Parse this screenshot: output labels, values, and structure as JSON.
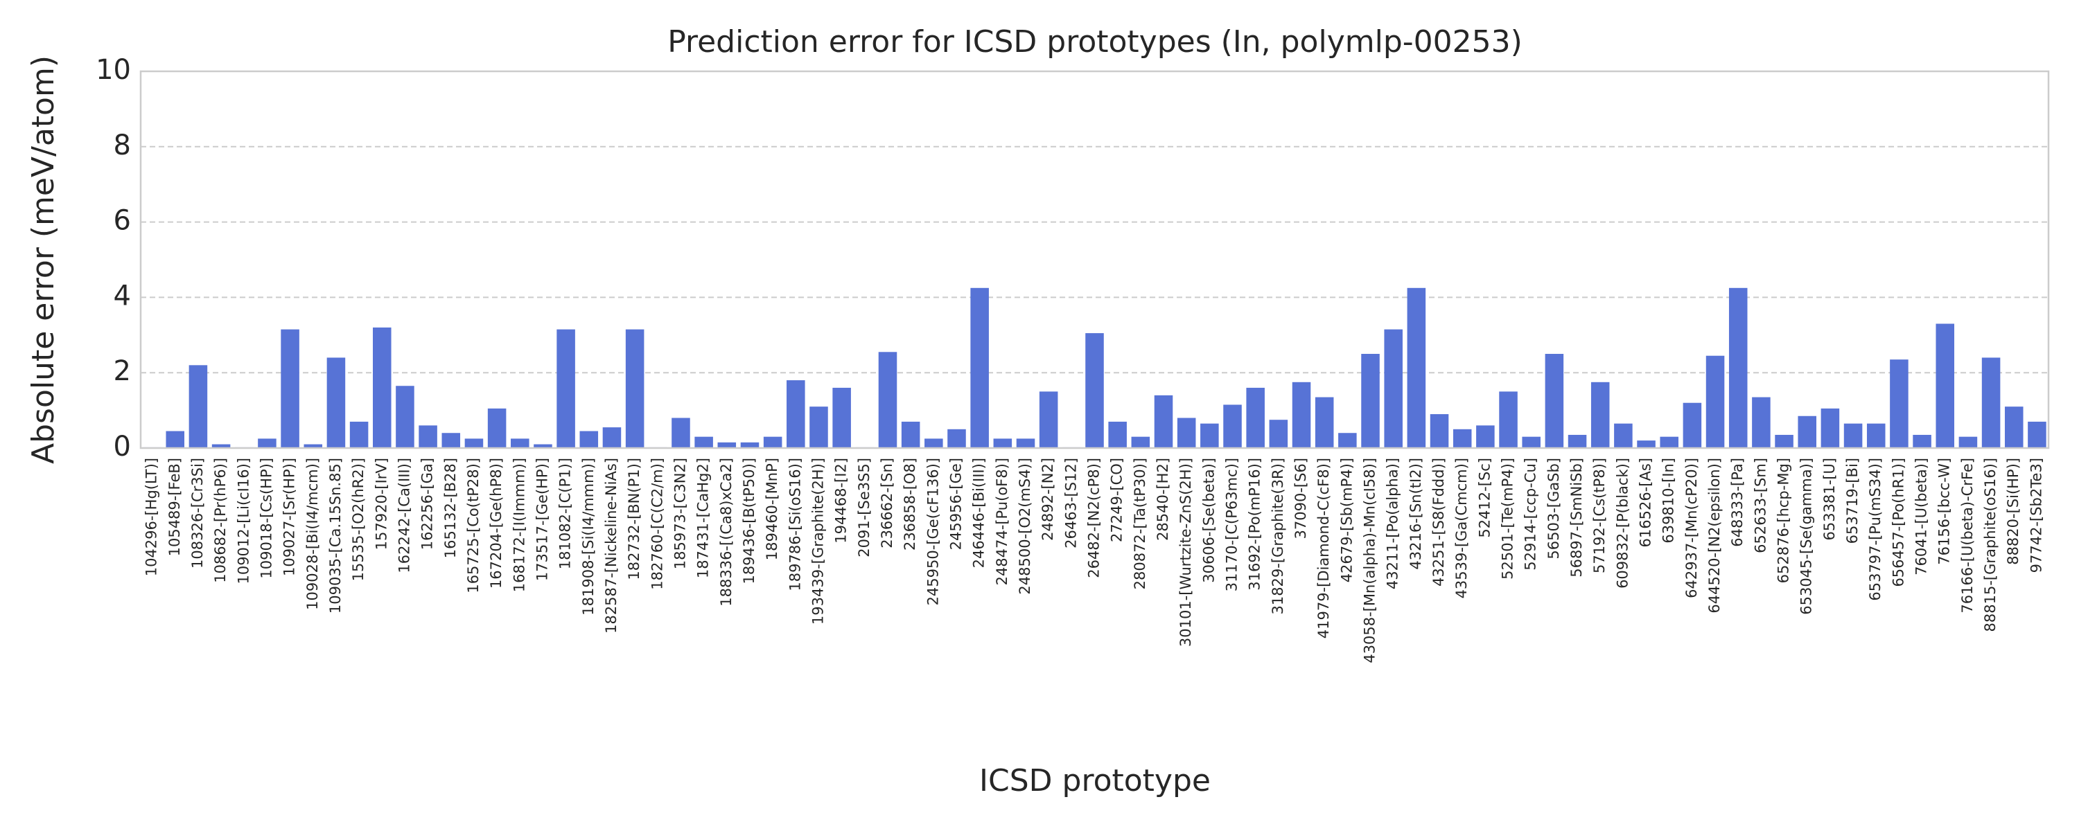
{
  "chart_data": {
    "type": "bar",
    "title": "Prediction error for ICSD prototypes (In, polymlp-00253)",
    "xlabel": "ICSD prototype",
    "ylabel": "Absolute error (meV/atom)",
    "color": "#5773d6",
    "grid": true,
    "ylim": [
      0,
      10
    ],
    "yticks": [
      0,
      2,
      4,
      6,
      8,
      10
    ],
    "categories": [
      "104296-[Hg(LT)]",
      "105489-[FeB]",
      "108326-[Cr3Si]",
      "108682-[Pr(hP6)]",
      "109012-[Li(cI16)]",
      "109018-[Cs(HP)]",
      "109027-[Sr(HP)]",
      "109028-[Bi(I4/mcm)]",
      "109035-[Ca.15Sn.85]",
      "15535-[O2(hR2)]",
      "157920-[IrV]",
      "162242-[Ca(III)]",
      "162256-[Ga]",
      "165132-[B28]",
      "165725-[Co(tP28)]",
      "167204-[Ge(hP8)]",
      "168172-[I(Immm)]",
      "173517-[Ge(HP)]",
      "181082-[C(P1)]",
      "181908-[Si(I4/mmm)]",
      "182587-[Nickeline-NiAs]",
      "182732-[BN(P1)]",
      "182760-[C(C2/m)]",
      "185973-[C3N2]",
      "187431-[CaHg2]",
      "188336-[(Ca8)xCa2]",
      "189436-[B(tP50)]",
      "189460-[MnP]",
      "189786-[Si(oS16)]",
      "193439-[Graphite(2H)]",
      "194468-[I2]",
      "2091-[Se3S5]",
      "236662-[Sn]",
      "236858-[O8]",
      "245950-[Ge(cF136)]",
      "245956-[Ge]",
      "246446-[Bi(III)]",
      "248474-[Pu(oF8)]",
      "248500-[O2(mS4)]",
      "24892-[N2]",
      "26463-[S12]",
      "26482-[N2(cP8)]",
      "27249-[CO]",
      "280872-[Ta(tP30)]",
      "28540-[H2]",
      "30101-[Wurtzite-ZnS(2H)]",
      "30606-[Se(beta)]",
      "31170-[C(P63mc)]",
      "31692-[Po(mP16)]",
      "31829-[Graphite(3R)]",
      "37090-[S6]",
      "41979-[Diamond-C(cF8)]",
      "42679-[Sb(mP4)]",
      "43058-[Mn(alpha)-Mn(cI58)]",
      "43211-[Po(alpha)]",
      "43216-[Sn(tI2)]",
      "43251-[S8(Fddd)]",
      "43539-[Ga(Cmcm)]",
      "52412-[Sc]",
      "52501-[Te(mP4)]",
      "52914-[ccp-Cu]",
      "56503-[GaSb]",
      "56897-[SmNiSb]",
      "57192-[Cs(tP8)]",
      "609832-[P(black)]",
      "616526-[As]",
      "639810-[In]",
      "642937-[Mn(cP20)]",
      "644520-[N2(epsilon)]",
      "648333-[Pa]",
      "652633-[Sm]",
      "652876-[hcp-Mg]",
      "653045-[Se(gamma)]",
      "653381-[U]",
      "653719-[Bi]",
      "653797-[Pu(mS34)]",
      "656457-[Po(hR1)]",
      "76041-[U(beta)]",
      "76156-[bcc-W]",
      "76166-[U(beta)-CrFe]",
      "88815-[Graphite(oS16)]",
      "88820-[Si(HP)]",
      "97742-[Sb2Te3]"
    ],
    "values": [
      0.02,
      0.45,
      2.2,
      0.1,
      0.02,
      0.25,
      3.15,
      0.1,
      2.4,
      0.7,
      3.2,
      1.65,
      0.6,
      0.4,
      0.25,
      1.05,
      0.25,
      0.1,
      3.15,
      0.45,
      0.55,
      3.15,
      0.02,
      0.8,
      0.3,
      0.15,
      0.15,
      0.3,
      1.8,
      1.1,
      1.6,
      0.02,
      2.55,
      0.7,
      0.25,
      0.5,
      4.25,
      0.25,
      0.25,
      1.5,
      0.02,
      3.05,
      0.7,
      0.3,
      1.4,
      0.8,
      0.65,
      1.15,
      1.6,
      0.75,
      1.75,
      1.35,
      0.4,
      2.5,
      3.15,
      4.25,
      0.9,
      0.5,
      0.6,
      1.5,
      0.3,
      2.5,
      0.35,
      1.75,
      0.65,
      0.2,
      0.3,
      1.2,
      2.45,
      4.25,
      1.35,
      0.35,
      0.85,
      1.05,
      0.65,
      0.65,
      2.35,
      0.35,
      3.3,
      0.3,
      2.4,
      1.1,
      0.7
    ]
  }
}
